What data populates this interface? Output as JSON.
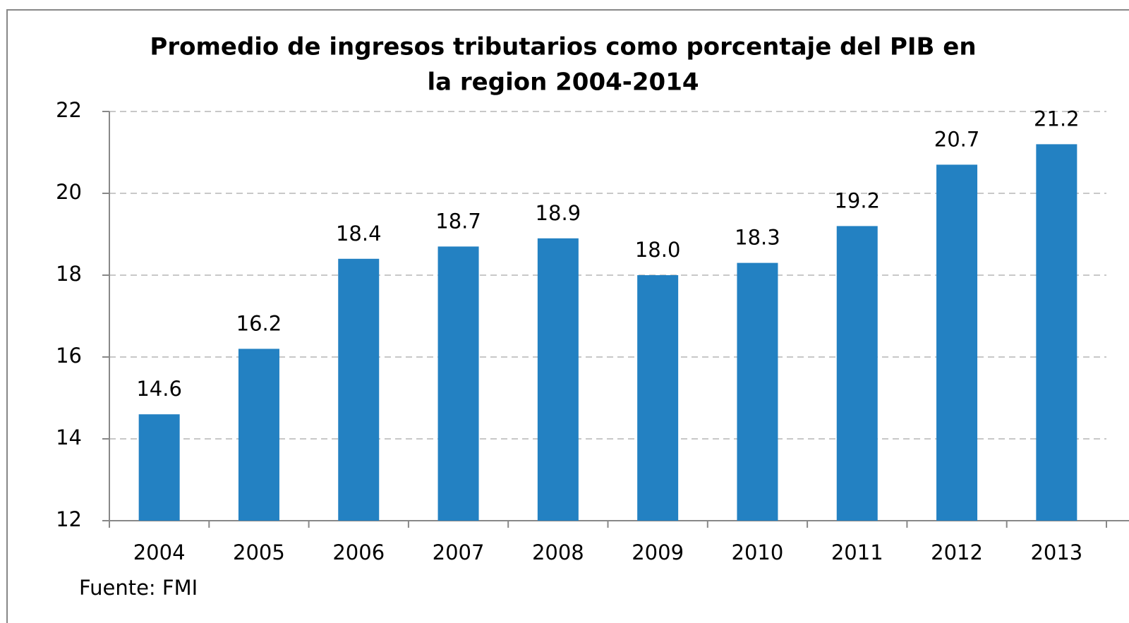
{
  "chart_data": {
    "type": "bar",
    "title": [
      "Promedio de ingresos tributarios como porcentaje del PIB en",
      "la region 2004-2014"
    ],
    "categories": [
      "2004",
      "2005",
      "2006",
      "2007",
      "2008",
      "2009",
      "2010",
      "2011",
      "2012",
      "2013"
    ],
    "values": [
      14.6,
      16.2,
      18.4,
      18.7,
      18.9,
      18.0,
      18.3,
      19.2,
      20.7,
      21.2
    ],
    "value_labels": [
      "14.6",
      "16.2",
      "18.4",
      "18.7",
      "18.9",
      "18.0",
      "18.3",
      "19.2",
      "20.7",
      "21.2"
    ],
    "color": "#2381c2",
    "ylim": [
      12,
      22
    ],
    "yticks": [
      12,
      14,
      16,
      18,
      20,
      22
    ],
    "grid": true,
    "source": "Fuente: FMI"
  }
}
